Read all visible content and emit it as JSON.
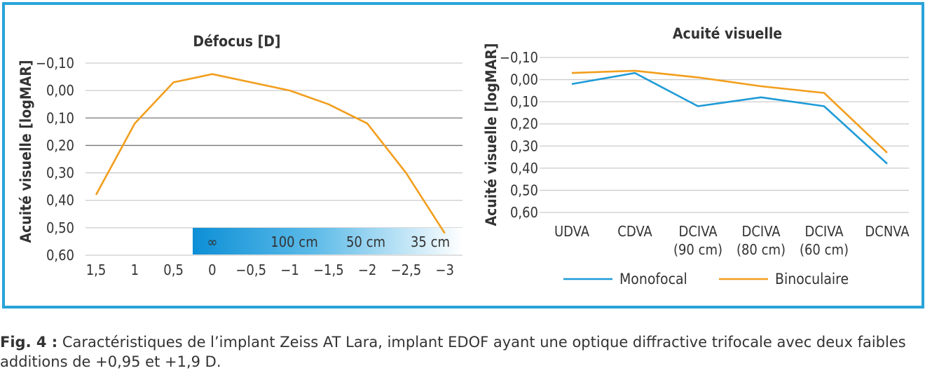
{
  "colors": {
    "frame": "#29a3d8",
    "monofocal": "#1f9bd7",
    "binoculaire": "#f29e1c"
  },
  "chart_data": [
    {
      "type": "line",
      "title": "Défocus [D]",
      "ylabel": "Acuité visuelle [logMAR]",
      "y_inverted": true,
      "ylim": [
        -0.1,
        0.6
      ],
      "y_ticks": [
        -0.1,
        0.0,
        0.1,
        0.2,
        0.3,
        0.4,
        0.5,
        0.6
      ],
      "y_tick_labels": [
        "−0,10",
        "0,00",
        "0,10",
        "0,20",
        "0,30",
        "0,40",
        "0,50",
        "0,60"
      ],
      "x_ticks": [
        1.5,
        1,
        0.5,
        0,
        -0.5,
        -1,
        -1.5,
        -2,
        -2.5,
        -3
      ],
      "x_tick_labels": [
        "1,5",
        "1",
        "0,5",
        "0",
        "−0,5",
        "−1",
        "−1,5",
        "−2",
        "−2,5",
        "−3"
      ],
      "series": [
        {
          "x": [
            1.5,
            1.0,
            0.5,
            0.0,
            -0.5,
            -1.0,
            -1.5,
            -2.0,
            -2.5,
            -3.0
          ],
          "y": [
            0.38,
            0.12,
            -0.03,
            -0.06,
            -0.03,
            0.0,
            0.05,
            0.12,
            0.3,
            0.52
          ]
        }
      ],
      "distance_band": {
        "labels": [
          "∞",
          "100 cm",
          "50 cm",
          "35 cm"
        ]
      }
    },
    {
      "type": "line",
      "title": "Acuité visuelle",
      "ylabel": "Acuité visuelle [logMAR]",
      "y_inverted": true,
      "ylim": [
        -0.1,
        0.6
      ],
      "y_ticks": [
        -0.1,
        0.0,
        0.1,
        0.2,
        0.3,
        0.4,
        0.5,
        0.6
      ],
      "y_tick_labels": [
        "−0,10",
        "0,00",
        "0,10",
        "0,20",
        "0,30",
        "0,40",
        "0,50",
        "0,60"
      ],
      "categories": [
        [
          "UDVA"
        ],
        [
          "CDVA"
        ],
        [
          "DCIVA",
          "(90 cm)"
        ],
        [
          "DCIVA",
          "(80 cm)"
        ],
        [
          "DCIVA",
          "(60 cm)"
        ],
        [
          "DCNVA"
        ]
      ],
      "series": [
        {
          "name": "Monofocal",
          "values": [
            0.02,
            -0.03,
            0.12,
            0.08,
            0.12,
            0.38
          ]
        },
        {
          "name": "Binoculaire",
          "values": [
            -0.03,
            -0.04,
            -0.01,
            0.03,
            0.06,
            0.33
          ]
        }
      ],
      "legend": "bottom"
    }
  ],
  "caption": {
    "label": "Fig. 4 :",
    "text": " Caractéristiques de l’implant Zeiss AT Lara, implant EDOF ayant une optique diffractive trifocale avec deux faibles additions de +0,95 et +1,9 D."
  }
}
